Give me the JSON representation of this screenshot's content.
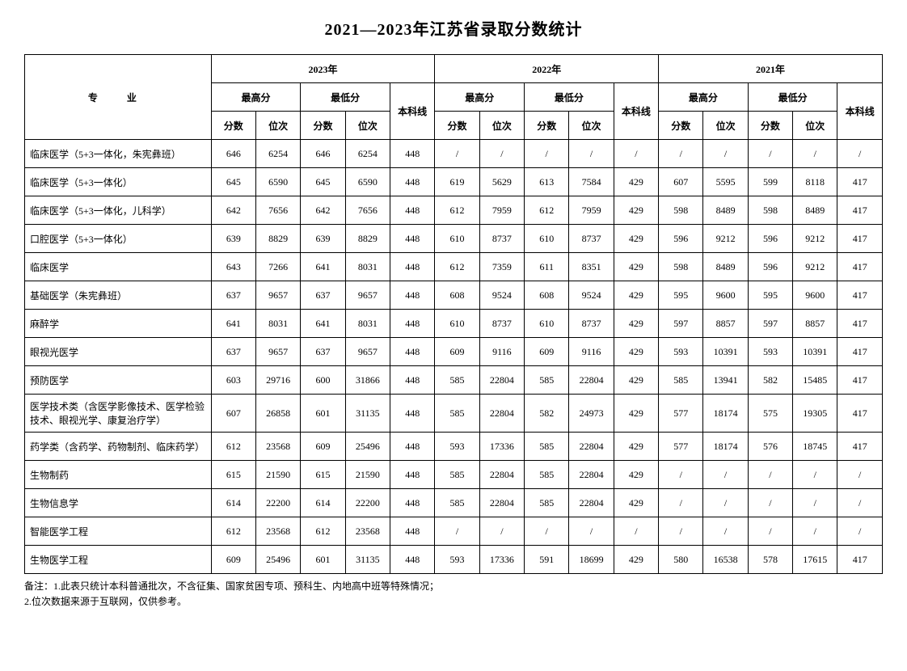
{
  "title": "2021—2023年江苏省录取分数统计",
  "headers": {
    "major": "专　业",
    "year2023": "2023年",
    "year2022": "2022年",
    "year2021": "2021年",
    "maxScore": "最高分",
    "minScore": "最低分",
    "cutoff": "本科线",
    "score": "分数",
    "rank": "位次"
  },
  "rows": [
    {
      "major": "临床医学（5+3一体化，朱宪彝班）",
      "d": [
        "646",
        "6254",
        "646",
        "6254",
        "448",
        "/",
        "/",
        "/",
        "/",
        "/",
        "/",
        "/",
        "/",
        "/",
        "/"
      ]
    },
    {
      "major": "临床医学（5+3一体化）",
      "d": [
        "645",
        "6590",
        "645",
        "6590",
        "448",
        "619",
        "5629",
        "613",
        "7584",
        "429",
        "607",
        "5595",
        "599",
        "8118",
        "417"
      ]
    },
    {
      "major": "临床医学（5+3一体化，儿科学）",
      "d": [
        "642",
        "7656",
        "642",
        "7656",
        "448",
        "612",
        "7959",
        "612",
        "7959",
        "429",
        "598",
        "8489",
        "598",
        "8489",
        "417"
      ]
    },
    {
      "major": "口腔医学（5+3一体化）",
      "d": [
        "639",
        "8829",
        "639",
        "8829",
        "448",
        "610",
        "8737",
        "610",
        "8737",
        "429",
        "596",
        "9212",
        "596",
        "9212",
        "417"
      ]
    },
    {
      "major": "临床医学",
      "d": [
        "643",
        "7266",
        "641",
        "8031",
        "448",
        "612",
        "7359",
        "611",
        "8351",
        "429",
        "598",
        "8489",
        "596",
        "9212",
        "417"
      ]
    },
    {
      "major": "基础医学（朱宪彝班）",
      "d": [
        "637",
        "9657",
        "637",
        "9657",
        "448",
        "608",
        "9524",
        "608",
        "9524",
        "429",
        "595",
        "9600",
        "595",
        "9600",
        "417"
      ]
    },
    {
      "major": "麻醉学",
      "d": [
        "641",
        "8031",
        "641",
        "8031",
        "448",
        "610",
        "8737",
        "610",
        "8737",
        "429",
        "597",
        "8857",
        "597",
        "8857",
        "417"
      ]
    },
    {
      "major": "眼视光医学",
      "d": [
        "637",
        "9657",
        "637",
        "9657",
        "448",
        "609",
        "9116",
        "609",
        "9116",
        "429",
        "593",
        "10391",
        "593",
        "10391",
        "417"
      ]
    },
    {
      "major": "预防医学",
      "d": [
        "603",
        "29716",
        "600",
        "31866",
        "448",
        "585",
        "22804",
        "585",
        "22804",
        "429",
        "585",
        "13941",
        "582",
        "15485",
        "417"
      ]
    },
    {
      "major": "医学技术类（含医学影像技术、医学检验技术、眼视光学、康复治疗学）",
      "d": [
        "607",
        "26858",
        "601",
        "31135",
        "448",
        "585",
        "22804",
        "582",
        "24973",
        "429",
        "577",
        "18174",
        "575",
        "19305",
        "417"
      ]
    },
    {
      "major": "药学类（含药学、药物制剂、临床药学）",
      "d": [
        "612",
        "23568",
        "609",
        "25496",
        "448",
        "593",
        "17336",
        "585",
        "22804",
        "429",
        "577",
        "18174",
        "576",
        "18745",
        "417"
      ]
    },
    {
      "major": "生物制药",
      "d": [
        "615",
        "21590",
        "615",
        "21590",
        "448",
        "585",
        "22804",
        "585",
        "22804",
        "429",
        "/",
        "/",
        "/",
        "/",
        "/"
      ]
    },
    {
      "major": "生物信息学",
      "d": [
        "614",
        "22200",
        "614",
        "22200",
        "448",
        "585",
        "22804",
        "585",
        "22804",
        "429",
        "/",
        "/",
        "/",
        "/",
        "/"
      ]
    },
    {
      "major": "智能医学工程",
      "d": [
        "612",
        "23568",
        "612",
        "23568",
        "448",
        "/",
        "/",
        "/",
        "/",
        "/",
        "/",
        "/",
        "/",
        "/",
        "/"
      ]
    },
    {
      "major": "生物医学工程",
      "d": [
        "609",
        "25496",
        "601",
        "31135",
        "448",
        "593",
        "17336",
        "591",
        "18699",
        "429",
        "580",
        "16538",
        "578",
        "17615",
        "417"
      ]
    }
  ],
  "notes": {
    "line1": "备注：1.此表只统计本科普通批次，不含征集、国家贫困专项、预科生、内地高中班等特殊情况；",
    "line2": "2.位次数据来源于互联网，仅供参考。"
  }
}
